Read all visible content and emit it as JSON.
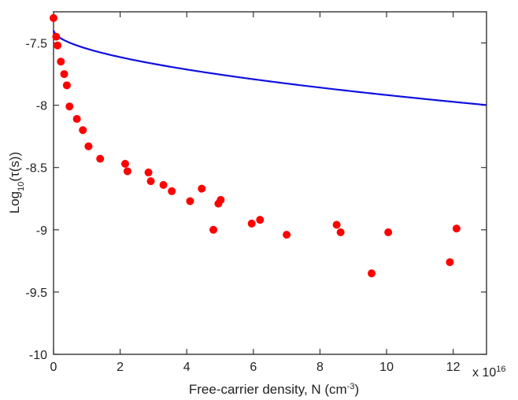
{
  "chart_data": {
    "type": "scatter",
    "xlabel": "Free-carrier density, N (cm",
    "xlabel_sup": "-3",
    "xlabel_tail": ")",
    "ylabel": "Log",
    "ylabel_sub": "10",
    "ylabel_tail": "(τ(s))",
    "x_multiplier": "x 10",
    "x_multiplier_exp": "16",
    "xlim": [
      0,
      13
    ],
    "ylim": [
      -10,
      -7.25
    ],
    "x_ticks": [
      0,
      2,
      4,
      6,
      8,
      10,
      12
    ],
    "x_tick_labels": [
      "0",
      "2",
      "4",
      "6",
      "8",
      "10",
      "12"
    ],
    "y_ticks": [
      -7.5,
      -8,
      -8.5,
      -9,
      -9.5,
      -10
    ],
    "y_tick_labels": [
      "-7.5",
      "-8",
      "-8.5",
      "-9",
      "-9.5",
      "-10"
    ],
    "grid": false,
    "legend": "none",
    "colors": {
      "points": "#ff0000",
      "fit": "#1010e0",
      "axes": "#333333"
    },
    "series": [
      {
        "kind": "points",
        "points": [
          [
            0.0,
            -7.3
          ],
          [
            0.08,
            -7.45
          ],
          [
            0.12,
            -7.52
          ],
          [
            0.22,
            -7.65
          ],
          [
            0.32,
            -7.75
          ],
          [
            0.4,
            -7.84
          ],
          [
            0.48,
            -8.01
          ],
          [
            0.7,
            -8.11
          ],
          [
            0.88,
            -8.2
          ],
          [
            1.05,
            -8.33
          ],
          [
            1.4,
            -8.43
          ],
          [
            2.15,
            -8.47
          ],
          [
            2.22,
            -8.53
          ],
          [
            2.85,
            -8.54
          ],
          [
            2.92,
            -8.61
          ],
          [
            3.3,
            -8.64
          ],
          [
            3.55,
            -8.69
          ],
          [
            4.1,
            -8.77
          ],
          [
            4.45,
            -8.67
          ],
          [
            4.8,
            -9.0
          ],
          [
            4.95,
            -8.79
          ],
          [
            5.02,
            -8.76
          ],
          [
            5.95,
            -8.95
          ],
          [
            6.2,
            -8.92
          ],
          [
            7.0,
            -9.04
          ],
          [
            8.5,
            -8.96
          ],
          [
            8.62,
            -9.02
          ],
          [
            9.55,
            -9.35
          ],
          [
            10.05,
            -9.02
          ],
          [
            11.9,
            -9.26
          ],
          [
            12.1,
            -8.99
          ]
        ]
      },
      {
        "kind": "fit-line",
        "model": "y = -7.4 - 0.146 * x^0.55"
      }
    ]
  }
}
